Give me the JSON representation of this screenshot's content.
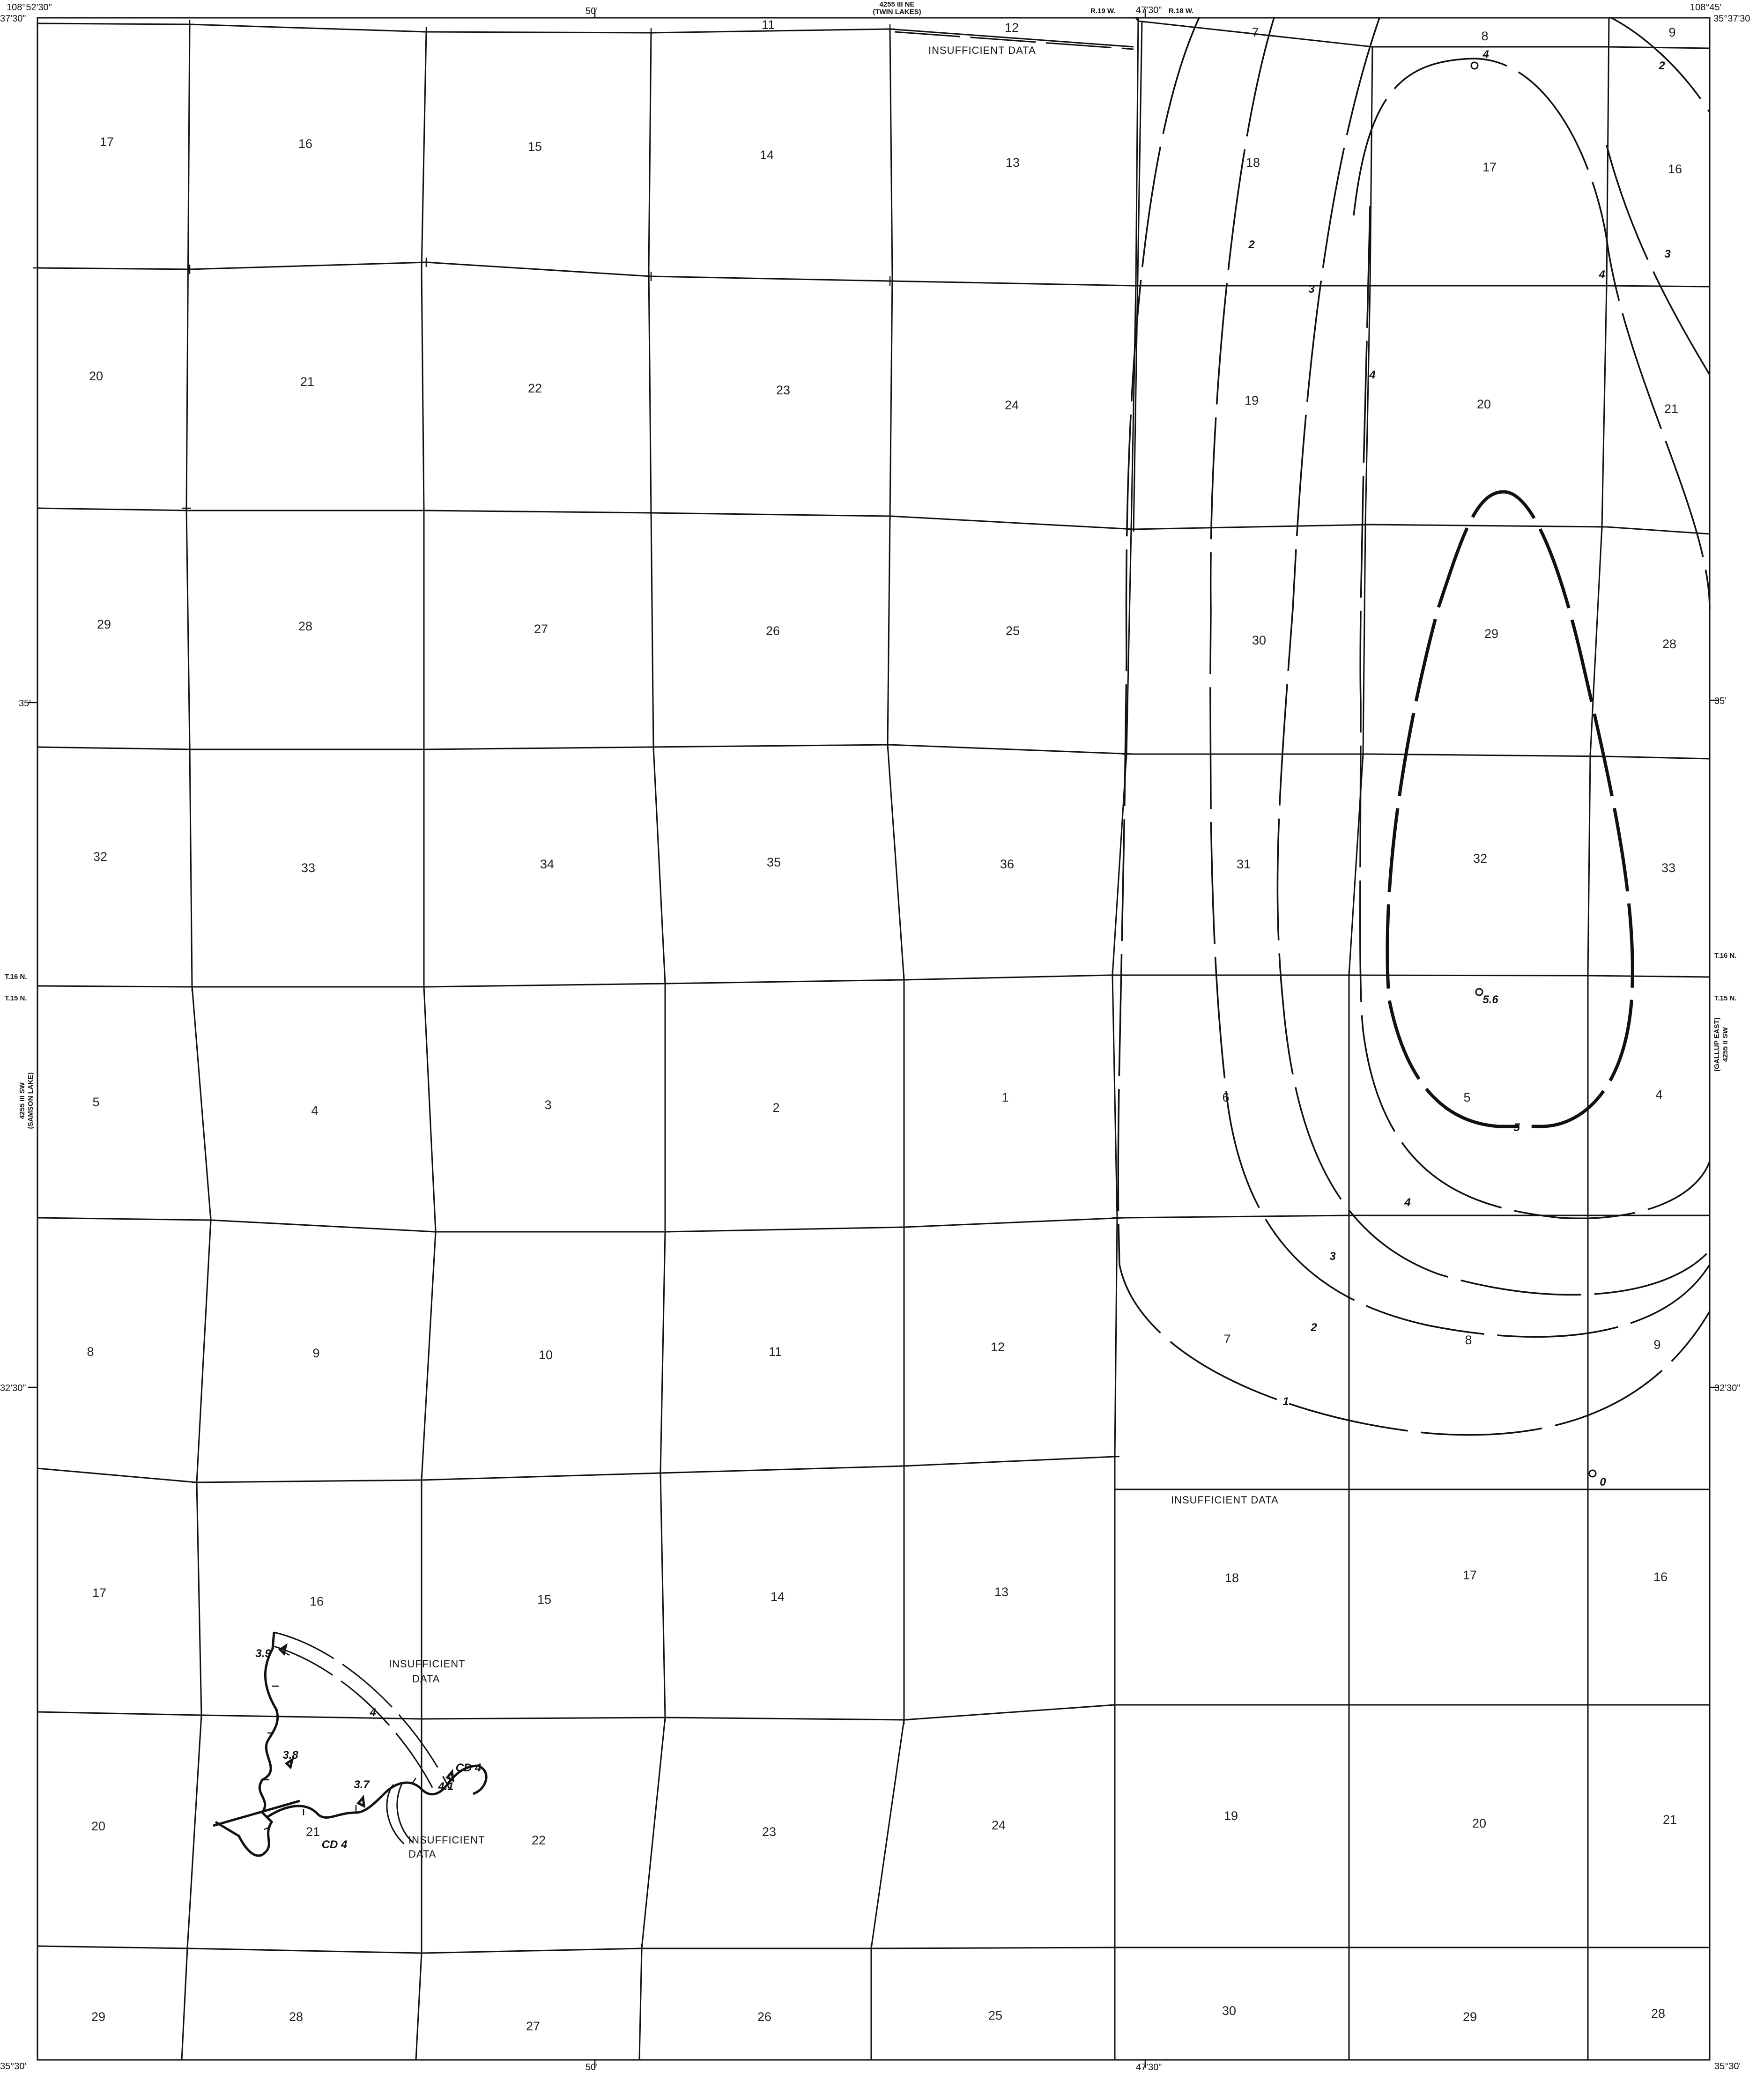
{
  "map": {
    "corner_nw_lon": "108°52'30\"",
    "corner_nw_lat": "37'30\"",
    "corner_ne_lon": "108°45'",
    "corner_ne_lat": "35°37'30",
    "corner_sw_lat": "35°30'",
    "corner_se_lat": "35°30'",
    "top_tick_50": "50'",
    "top_tick_4730": "47'30\"",
    "adjacent_n_code": "4255 III NE",
    "adjacent_n_name": "(TWIN LAKES)",
    "range_west": "R.19 W.",
    "range_east": "R.18 W.",
    "lat_35_left": "35'",
    "lat_35_right": "35'",
    "lat_3230_left": "32'30\"",
    "lat_3230_right": "32'30\"",
    "twp_16_left": "T.16 N.",
    "twp_15_left": "T.15 N.",
    "twp_16_right": "T.16 N.",
    "twp_15_right": "T.15 N.",
    "adjacent_w_code": "4255 III SW",
    "adjacent_w_name": "(SAMSON LAKE)",
    "adjacent_e_code": "4255 II SW",
    "adjacent_e_name": "(GALLUP EAST)",
    "bottom_tick_50": "50'",
    "bottom_tick_4730": "47'30\""
  },
  "sections": {
    "r1": [
      "17",
      "16",
      "15",
      "14",
      "13",
      "18",
      "17",
      "16"
    ],
    "r0": [
      "11",
      "12",
      "7",
      "8",
      "9"
    ],
    "r2": [
      "20",
      "21",
      "22",
      "23",
      "24",
      "19",
      "20",
      "21"
    ],
    "r3": [
      "29",
      "28",
      "27",
      "26",
      "25",
      "30",
      "29",
      "28"
    ],
    "r4": [
      "32",
      "33",
      "34",
      "35",
      "36",
      "31",
      "32",
      "33"
    ],
    "r5": [
      "5",
      "4",
      "3",
      "2",
      "1",
      "6",
      "5",
      "4"
    ],
    "r6": [
      "8",
      "9",
      "10",
      "11",
      "12",
      "7",
      "8",
      "9"
    ],
    "r7": [
      "17",
      "16",
      "15",
      "14",
      "13",
      "18",
      "17",
      "16"
    ],
    "r8": [
      "20",
      "21",
      "22",
      "23",
      "24",
      "19",
      "20",
      "21"
    ],
    "r9": [
      "29",
      "28",
      "27",
      "26",
      "25",
      "30",
      "29",
      "28"
    ]
  },
  "notes": {
    "insufficient_top": "INSUFFICIENT DATA",
    "insufficient_mid": "INSUFFICIENT DATA",
    "insufficient_sw1_a": "INSUFFICIENT",
    "insufficient_sw1_b": "DATA",
    "insufficient_sw2_a": "INSUFFICIENT",
    "insufficient_sw2_b": "DATA"
  },
  "contours": {
    "c1": "1",
    "c2": "2",
    "c3": "3",
    "c4": "4",
    "c5": "5",
    "c2_top": "2",
    "c3_top": "3",
    "c4_top": "4",
    "c2_ne": "2",
    "c3_ne": "3",
    "c4_mid": "4",
    "c5_mid": "5"
  },
  "points": {
    "p_top": "4",
    "p_center": "5.6",
    "p_se": "0",
    "sw_39": "3.9",
    "sw_38": "3.8",
    "sw_37": "3.7",
    "sw_41": "4.1",
    "sw_4": "4",
    "cd_1": "CD 4",
    "cd_2": "CD 4"
  }
}
